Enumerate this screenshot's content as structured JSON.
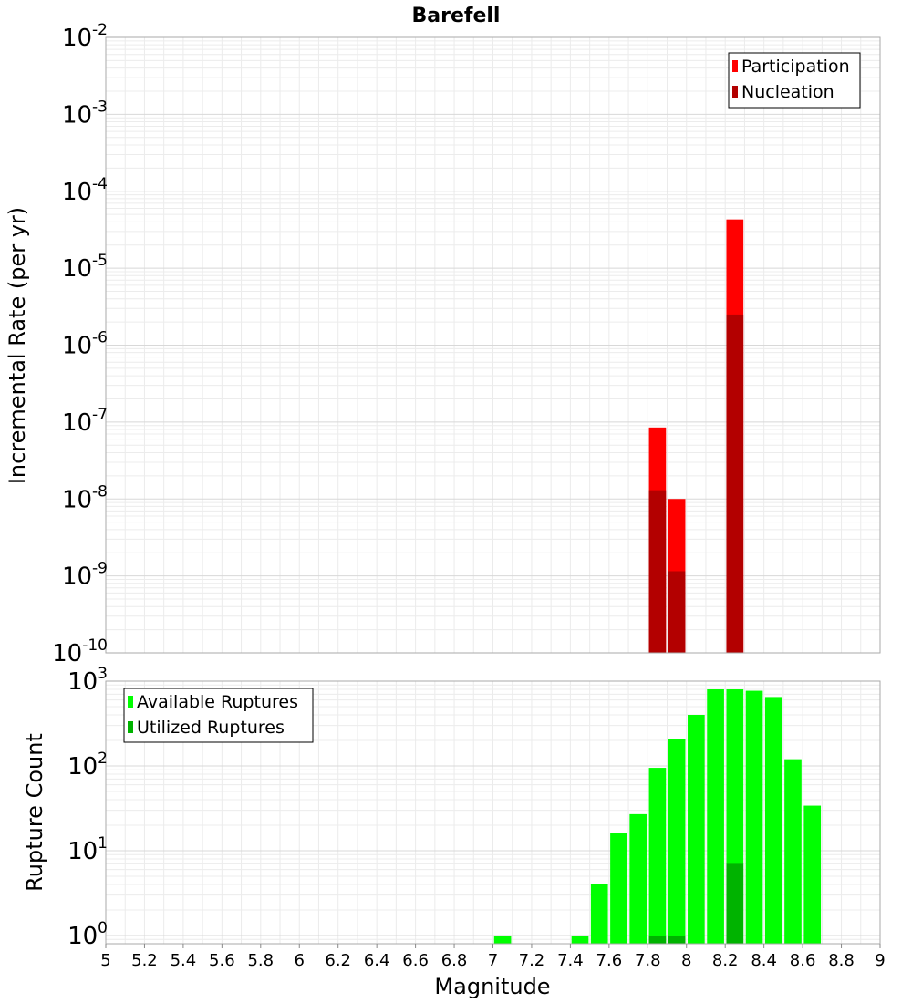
{
  "chart_data": [
    {
      "type": "bar",
      "title": "Barefell",
      "xlabel": "Magnitude",
      "ylabel": "Incremental Rate (per yr)",
      "yscale": "log",
      "ylim": [
        1e-10,
        0.01
      ],
      "xlim": [
        5,
        9
      ],
      "grid": true,
      "legend_position": "top-right",
      "ytick_labels": [
        {
          "base": "10",
          "exp": "-10",
          "value": 1e-10
        },
        {
          "base": "10",
          "exp": "-9",
          "value": 1e-09
        },
        {
          "base": "10",
          "exp": "-8",
          "value": 1e-08
        },
        {
          "base": "10",
          "exp": "-7",
          "value": 1e-07
        },
        {
          "base": "10",
          "exp": "-6",
          "value": 1e-06
        },
        {
          "base": "10",
          "exp": "-5",
          "value": 1e-05
        },
        {
          "base": "10",
          "exp": "-4",
          "value": 0.0001
        },
        {
          "base": "10",
          "exp": "-3",
          "value": 0.001
        },
        {
          "base": "10",
          "exp": "-2",
          "value": 0.01
        }
      ],
      "series": [
        {
          "name": "Participation",
          "color": "#ff0000",
          "x": [
            7.85,
            7.95,
            8.25
          ],
          "values": [
            8.5e-08,
            1e-08,
            4.3e-05
          ]
        },
        {
          "name": "Nucleation",
          "color": "#b30000",
          "x": [
            7.85,
            7.95,
            8.25
          ],
          "values": [
            1.3e-08,
            1.15e-09,
            2.5e-06
          ]
        }
      ]
    },
    {
      "type": "bar",
      "xlabel": "Magnitude",
      "ylabel": "Rupture Count",
      "yscale": "log",
      "ylim": [
        0.8,
        1000
      ],
      "xlim": [
        5,
        9
      ],
      "grid": true,
      "legend_position": "top-left",
      "ytick_labels": [
        {
          "base": "10",
          "exp": "0",
          "value": 1
        },
        {
          "base": "10",
          "exp": "1",
          "value": 10
        },
        {
          "base": "10",
          "exp": "2",
          "value": 100
        },
        {
          "base": "10",
          "exp": "3",
          "value": 1000
        }
      ],
      "xtick_labels": [
        "5",
        "5.2",
        "5.4",
        "5.6",
        "5.8",
        "6",
        "6.2",
        "6.4",
        "6.6",
        "6.8",
        "7",
        "7.2",
        "7.4",
        "7.6",
        "7.8",
        "8",
        "8.2",
        "8.4",
        "8.6",
        "8.8",
        "9"
      ],
      "series": [
        {
          "name": "Available Ruptures",
          "color": "#00ff00",
          "x": [
            7.05,
            7.45,
            7.55,
            7.65,
            7.75,
            7.85,
            7.95,
            8.05,
            8.15,
            8.25,
            8.35,
            8.45,
            8.55,
            8.65
          ],
          "values": [
            1,
            1,
            4,
            16,
            27,
            95,
            210,
            400,
            800,
            800,
            770,
            650,
            120,
            34
          ]
        },
        {
          "name": "Utilized Ruptures",
          "color": "#00b300",
          "x": [
            7.85,
            7.95,
            8.25
          ],
          "values": [
            1,
            1,
            7
          ]
        }
      ]
    }
  ]
}
